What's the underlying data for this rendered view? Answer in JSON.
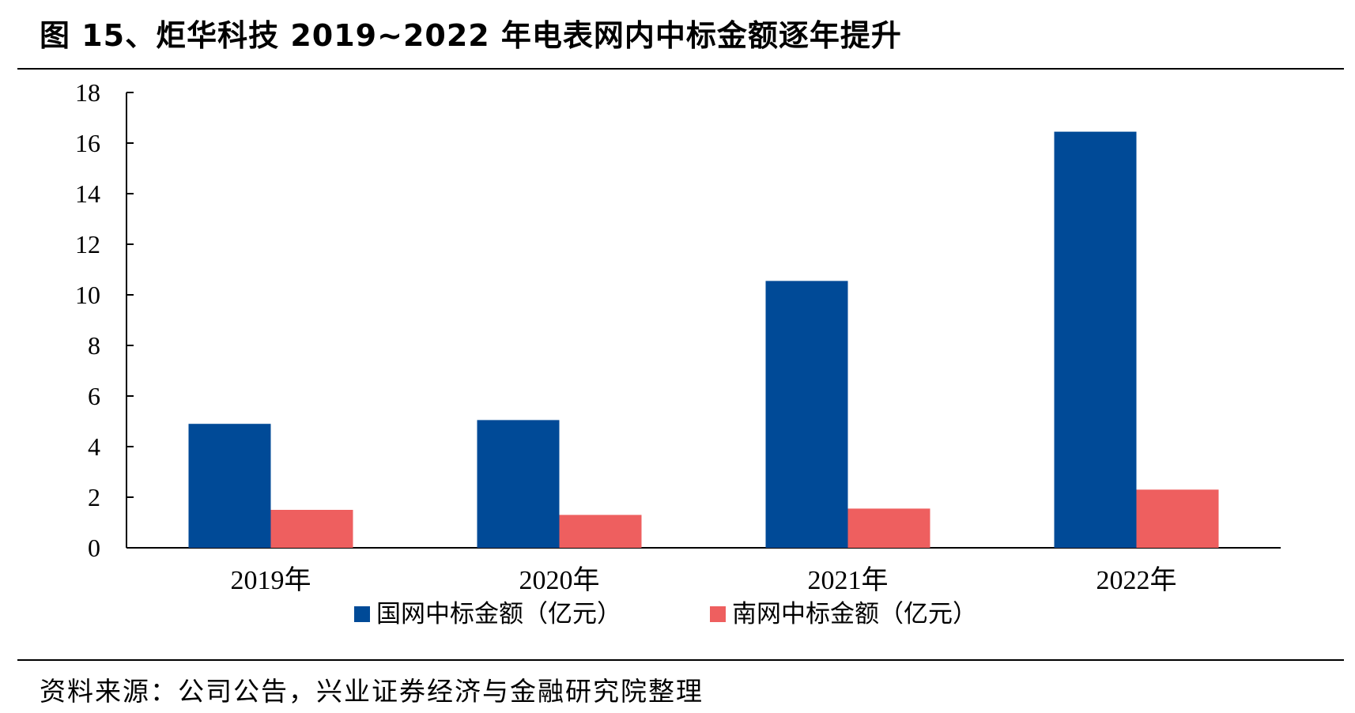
{
  "title": "图 15、炬华科技 2019~2022 年电表网内中标金额逐年提升",
  "source": "资料来源：公司公告，兴业证券经济与金融研究院整理",
  "colors": {
    "series1": "#004a97",
    "series2": "#ee5f5f"
  },
  "chart_data": {
    "type": "bar",
    "categories": [
      "2019年",
      "2020年",
      "2021年",
      "2022年"
    ],
    "series": [
      {
        "name": "国网中标金额（亿元）",
        "values": [
          4.9,
          5.05,
          10.55,
          16.45
        ]
      },
      {
        "name": "南网中标金额（亿元）",
        "values": [
          1.5,
          1.3,
          1.55,
          2.3
        ]
      }
    ],
    "ylim": [
      0,
      18
    ],
    "yticks": [
      0,
      2,
      4,
      6,
      8,
      10,
      12,
      14,
      16,
      18
    ],
    "xlabel": "",
    "ylabel": "",
    "legend": "bottom-center",
    "grid": false
  }
}
